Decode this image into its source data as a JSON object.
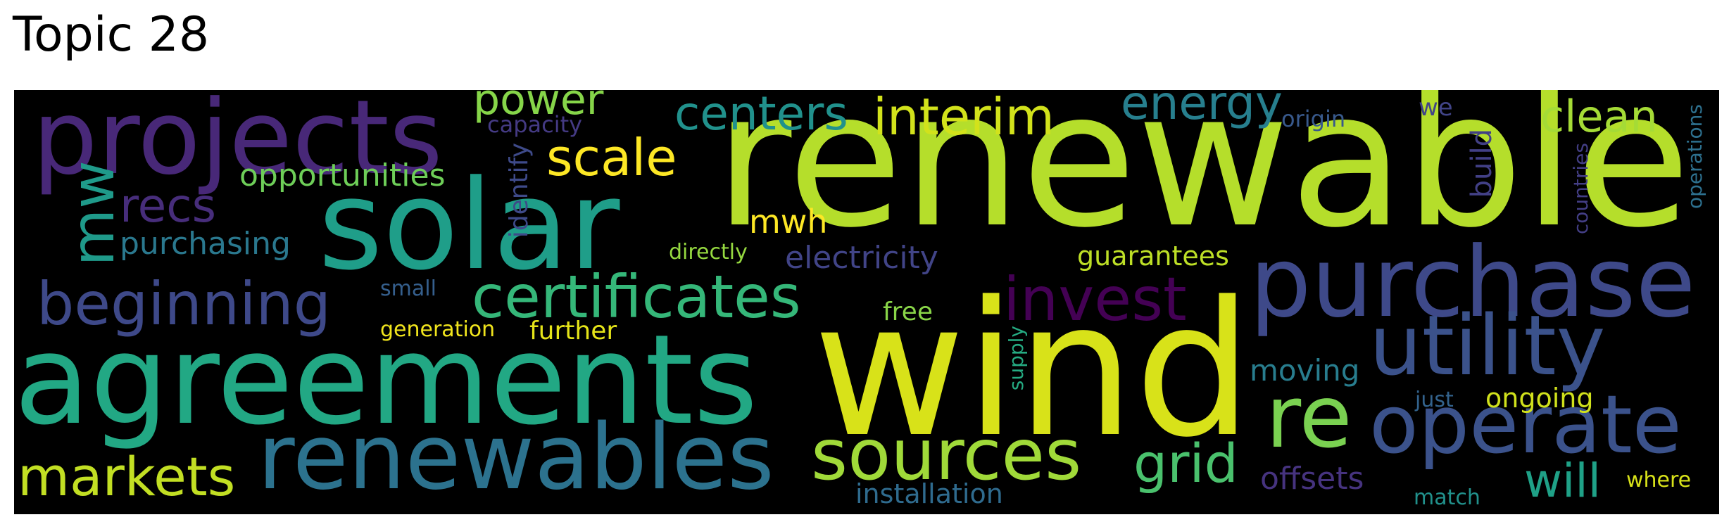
{
  "title": "Topic 28",
  "words": [
    {
      "text": "renewable",
      "color": "#b5de2b"
    },
    {
      "text": "wind",
      "color": "#d8e219"
    },
    {
      "text": "agreements",
      "color": "#22a884"
    },
    {
      "text": "solar",
      "color": "#1f9e89"
    },
    {
      "text": "projects",
      "color": "#482878"
    },
    {
      "text": "purchase",
      "color": "#3e4989"
    },
    {
      "text": "renewables",
      "color": "#2c728e"
    },
    {
      "text": "utility",
      "color": "#3b528b"
    },
    {
      "text": "operate",
      "color": "#3b528b"
    },
    {
      "text": "re",
      "color": "#7ad151"
    },
    {
      "text": "sources",
      "color": "#a0da39"
    },
    {
      "text": "certificates",
      "color": "#35b779"
    },
    {
      "text": "beginning",
      "color": "#3e4989"
    },
    {
      "text": "markets",
      "color": "#c2df23"
    },
    {
      "text": "invest",
      "color": "#440154"
    },
    {
      "text": "interim",
      "color": "#d2e21b"
    },
    {
      "text": "scale",
      "color": "#fde725"
    },
    {
      "text": "energy",
      "color": "#277f8e"
    },
    {
      "text": "centers",
      "color": "#21918c"
    },
    {
      "text": "clean",
      "color": "#a5db36"
    },
    {
      "text": "grid",
      "color": "#4ac16d"
    },
    {
      "text": "will",
      "color": "#1fa187"
    },
    {
      "text": "recs",
      "color": "#472d7b"
    },
    {
      "text": "power",
      "color": "#86d549"
    },
    {
      "text": "mw",
      "color": "#1f9a8a"
    },
    {
      "text": "offsets",
      "color": "#46337f"
    },
    {
      "text": "opportunities",
      "color": "#6ece58"
    },
    {
      "text": "purchasing",
      "color": "#2a788e"
    },
    {
      "text": "electricity",
      "color": "#414487"
    },
    {
      "text": "mwh",
      "color": "#fde725"
    },
    {
      "text": "guarantees",
      "color": "#bddf26"
    },
    {
      "text": "moving",
      "color": "#287d8e"
    },
    {
      "text": "ongoing",
      "color": "#d0e11c"
    },
    {
      "text": "further",
      "color": "#e5e419"
    },
    {
      "text": "installation",
      "color": "#2f6b8e"
    },
    {
      "text": "free",
      "color": "#89d548"
    },
    {
      "text": "identify",
      "color": "#3e4a89"
    },
    {
      "text": "build",
      "color": "#424086"
    },
    {
      "text": "generation",
      "color": "#f1e51d"
    },
    {
      "text": "capacity",
      "color": "#443a83"
    },
    {
      "text": "origin",
      "color": "#38598c"
    },
    {
      "text": "we",
      "color": "#414487"
    },
    {
      "text": "directly",
      "color": "#95d840"
    },
    {
      "text": "small",
      "color": "#355f8d"
    },
    {
      "text": "supply",
      "color": "#25ab82"
    },
    {
      "text": "just",
      "color": "#33638d"
    },
    {
      "text": "where",
      "color": "#d8e219"
    },
    {
      "text": "match",
      "color": "#21918c"
    },
    {
      "text": "countries",
      "color": "#433e85"
    },
    {
      "text": "operations",
      "color": "#2d708e"
    }
  ]
}
